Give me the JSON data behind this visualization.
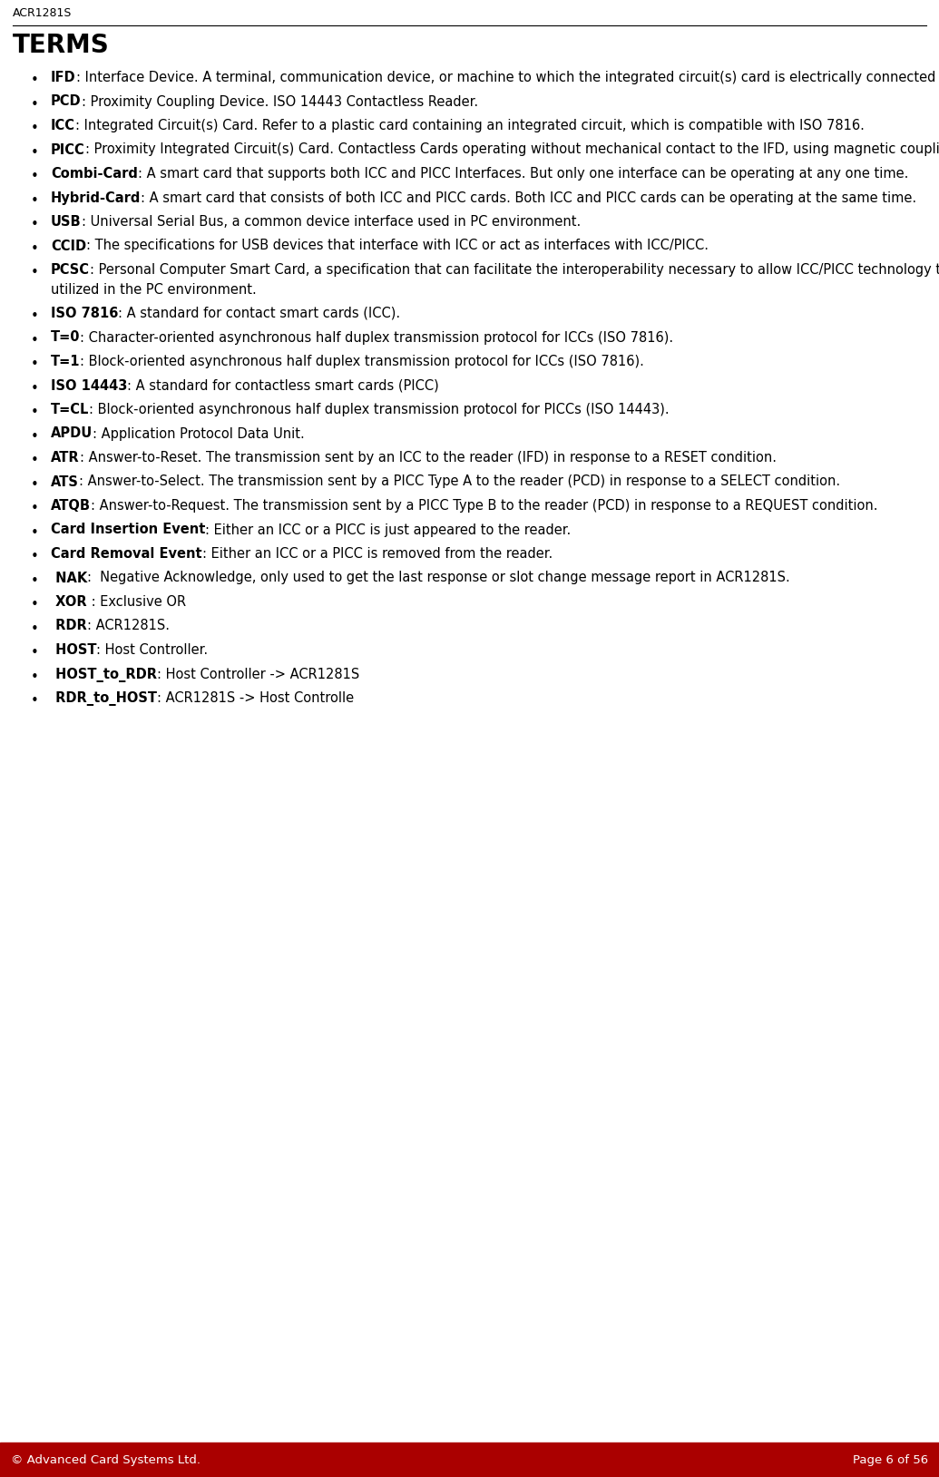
{
  "header_text": "ACR1281S",
  "title": "TERMS",
  "footer_left": "© Advanced Card Systems Ltd.",
  "footer_right": "Page 6 of 56",
  "footer_bg": "#aa0000",
  "footer_text_color": "#ffffff",
  "body_bg": "#ffffff",
  "header_text_color": "#000000",
  "title_color": "#000000",
  "bullet_items": [
    {
      "bold": "IFD",
      "rest": ": Interface Device. A terminal, communication device, or machine to which the integrated circuit(s) card is electrically connected during operation."
    },
    {
      "bold": "PCD",
      "rest": ": Proximity Coupling Device. ISO 14443 Contactless Reader."
    },
    {
      "bold": "ICC",
      "rest": ": Integrated Circuit(s) Card. Refer to a plastic card containing an integrated circuit, which is compatible with ISO 7816."
    },
    {
      "bold": "PICC",
      "rest": ": Proximity Integrated Circuit(s) Card. Contactless Cards operating without mechanical contact to the IFD, using magnetic coupling."
    },
    {
      "bold": "Combi-Card",
      "rest": ": A smart card that supports both ICC and PICC Interfaces. But only one interface can be operating at any one time."
    },
    {
      "bold": "Hybrid-Card",
      "rest": ": A smart card that consists of both ICC and PICC cards. Both ICC and PICC cards can be operating at the same time."
    },
    {
      "bold": "USB",
      "rest": ": Universal Serial Bus, a common device interface used in PC environment."
    },
    {
      "bold": "CCID",
      "rest": ": The specifications for USB devices that interface with ICC or act as interfaces with ICC/PICC."
    },
    {
      "bold": "PCSC",
      "rest": ": Personal Computer Smart Card, a specification that can facilitate the interoperability necessary to allow ICC/PICC technology to be effectively utilized in the PC environment."
    },
    {
      "bold": "ISO 7816",
      "rest": ": A standard for contact smart cards (ICC)."
    },
    {
      "bold": "T=0",
      "rest": ": Character-oriented asynchronous half duplex transmission protocol for ICCs (ISO 7816)."
    },
    {
      "bold": "T=1",
      "rest": ": Block-oriented asynchronous half duplex transmission protocol for ICCs (ISO 7816)."
    },
    {
      "bold": "ISO 14443",
      "rest": ": A standard for contactless smart cards (PICC)"
    },
    {
      "bold": "T=CL",
      "rest": ": Block-oriented asynchronous half duplex transmission protocol for PICCs (ISO 14443)."
    },
    {
      "bold": "APDU",
      "rest": ": Application Protocol Data Unit."
    },
    {
      "bold": "ATR",
      "rest": ": Answer-to-Reset. The transmission sent by an ICC to the reader (IFD) in response to a RESET condition."
    },
    {
      "bold": "ATS",
      "rest": ": Answer-to-Select. The transmission sent by a PICC Type A to the reader (PCD) in response to a SELECT condition."
    },
    {
      "bold": "ATQB",
      "rest": ": Answer-to-Request. The transmission sent by a PICC Type B to the reader (PCD) in response to a REQUEST condition."
    },
    {
      "bold": "Card Insertion Event",
      "rest": ": Either an ICC or a PICC is just appeared to the reader."
    },
    {
      "bold": "Card Removal Event",
      "rest": ": Either an ICC or a PICC is removed from the reader."
    },
    {
      "bold": " NAK",
      "rest": ":  Negative Acknowledge, only used to get the last response or slot change message report in ACR1281S."
    },
    {
      "bold": " XOR",
      "rest": " : Exclusive OR"
    },
    {
      "bold": " RDR",
      "rest": ": ACR1281S."
    },
    {
      "bold": " HOST",
      "rest": ": Host Controller."
    },
    {
      "bold": " HOST_to_RDR",
      "rest": ": Host Controller -> ACR1281S"
    },
    {
      "bold": " RDR_to_HOST",
      "rest": ": ACR1281S -> Host Controlle"
    }
  ]
}
